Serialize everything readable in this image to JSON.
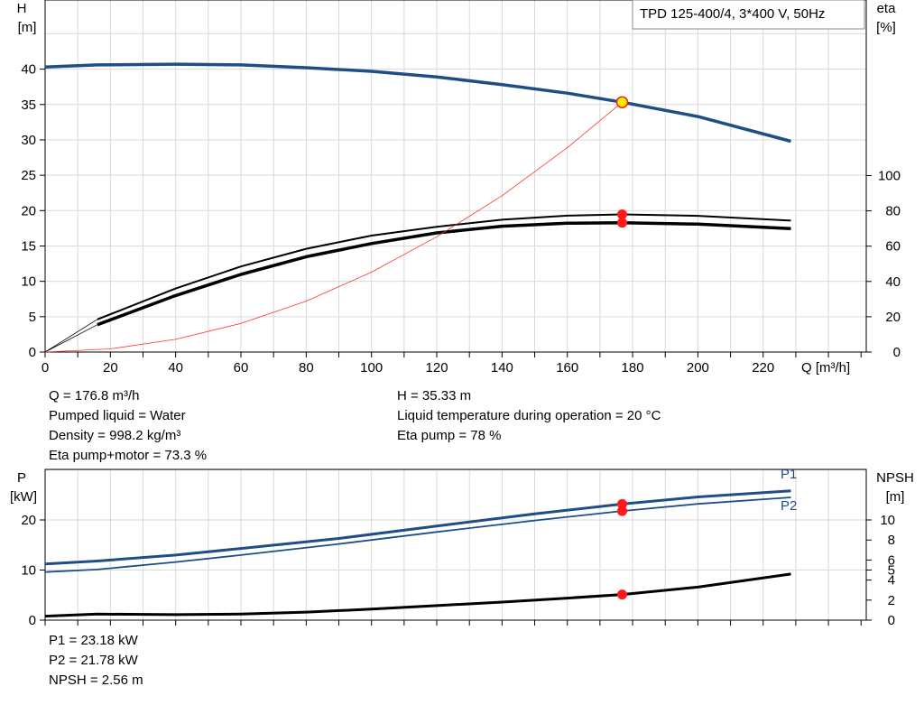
{
  "title_box": "TPD 125-400/4, 3*400 V, 50Hz",
  "top_chart": {
    "left_axis": {
      "label": "H",
      "unit": "[m]"
    },
    "right_axis": {
      "label": "eta",
      "unit": "[%]"
    },
    "x_axis_label": "Q [m³/h]"
  },
  "bottom_chart": {
    "left_axis": {
      "label": "P",
      "unit": "[kW]"
    },
    "right_axis": {
      "label": "NPSH",
      "unit": "[m]"
    }
  },
  "info_top": {
    "left": [
      "Q = 176.8 m³/h",
      "Pumped liquid = Water",
      "Density = 998.2 kg/m³",
      "Eta pump+motor = 73.3 %"
    ],
    "right": [
      "H = 35.33 m",
      "Liquid temperature during operation = 20 °C",
      "Eta pump = 78 %"
    ]
  },
  "info_bottom": [
    "P1 = 23.18 kW",
    "P2 = 21.78 kW",
    "NPSH = 2.56 m"
  ],
  "colors": {
    "head": "#1f4e86",
    "power": "#1f4e86",
    "eta": "#000000",
    "system": "#ff3333",
    "duty": "#ff1a1a",
    "duty_head": "#ffee00",
    "grid": "#d9d9d9"
  },
  "chart_data": [
    {
      "type": "line",
      "title": "TPD 125-400/4, 3*400 V, 50Hz",
      "xlabel": "Q [m³/h]",
      "xlim": [
        0,
        250
      ],
      "x_ticks": [
        0,
        20,
        40,
        60,
        80,
        100,
        120,
        140,
        160,
        180,
        200,
        220
      ],
      "left_y": {
        "label": "H [m]",
        "ylim": [
          0,
          45
        ],
        "ticks": [
          0,
          5,
          10,
          15,
          20,
          25,
          30,
          35,
          40
        ]
      },
      "right_y": {
        "label": "eta [%]",
        "ylim": [
          0,
          180
        ],
        "ticks": [
          0,
          20,
          40,
          60,
          80,
          100
        ]
      },
      "grid": true,
      "series": [
        {
          "axis": "left",
          "style": "head",
          "x": [
            0,
            16,
            40,
            60,
            80,
            100,
            120,
            140,
            160,
            176.8,
            200,
            228.5
          ],
          "y": [
            40.3,
            40.6,
            40.7,
            40.6,
            40.2,
            39.7,
            38.9,
            37.8,
            36.6,
            35.33,
            33.3,
            29.8
          ]
        },
        {
          "axis": "left",
          "style": "head-thin",
          "x": [
            0,
            16
          ],
          "y": [
            40.3,
            40.6
          ]
        },
        {
          "axis": "right",
          "style": "eta-pump",
          "x": [
            16,
            40,
            60,
            80,
            100,
            120,
            140,
            160,
            176.8,
            200,
            228.5
          ],
          "y": [
            18.5,
            36,
            48.5,
            58.5,
            66,
            71,
            75,
            77.3,
            78,
            77.2,
            74.5
          ]
        },
        {
          "axis": "right",
          "style": "eta-total",
          "x": [
            16,
            40,
            60,
            80,
            100,
            120,
            140,
            160,
            176.8,
            200,
            228.5
          ],
          "y": [
            15.5,
            32,
            44,
            54,
            61.5,
            67.5,
            71.3,
            73,
            73.3,
            72.5,
            70
          ]
        },
        {
          "axis": "right",
          "style": "thin",
          "x": [
            0,
            16
          ],
          "y": [
            0,
            18.5
          ]
        },
        {
          "axis": "right",
          "style": "thin",
          "x": [
            0,
            16
          ],
          "y": [
            0,
            15.5
          ]
        },
        {
          "axis": "left",
          "style": "system",
          "x": [
            0,
            20,
            40,
            60,
            80,
            100,
            120,
            140,
            160,
            176.8
          ],
          "y": [
            0,
            0.45,
            1.8,
            4.05,
            7.2,
            11.3,
            16.3,
            22.1,
            28.9,
            35.33
          ]
        }
      ],
      "duty_points": [
        {
          "axis": "left",
          "x": 176.8,
          "y": 35.33,
          "style": "head"
        },
        {
          "axis": "right",
          "x": 176.8,
          "y": 78,
          "style": "eta"
        },
        {
          "axis": "right",
          "x": 176.8,
          "y": 73.3,
          "style": "eta"
        }
      ]
    },
    {
      "type": "line",
      "xlim": [
        0,
        250
      ],
      "x_ticks": [
        0,
        20,
        40,
        60,
        80,
        100,
        120,
        140,
        160,
        180,
        200,
        220
      ],
      "left_y": {
        "label": "P [kW]",
        "ylim": [
          0,
          30
        ],
        "ticks": [
          0,
          10,
          20
        ]
      },
      "right_y": {
        "label": "NPSH [m]",
        "ylim": [
          0,
          16
        ],
        "ticks": [
          0,
          2,
          4,
          5,
          6,
          8,
          10
        ]
      },
      "grid": true,
      "series": [
        {
          "axis": "left",
          "name": "P1",
          "style": "power-thick",
          "x": [
            0,
            16,
            40,
            60,
            90,
            120,
            150,
            176.8,
            200,
            228.5
          ],
          "y": [
            11.2,
            11.8,
            13,
            14.3,
            16.3,
            18.8,
            21.2,
            23.18,
            24.6,
            25.8
          ]
        },
        {
          "axis": "left",
          "name": "P2",
          "style": "power-thin",
          "x": [
            0,
            16,
            40,
            60,
            90,
            120,
            150,
            176.8,
            200,
            228.5
          ],
          "y": [
            9.6,
            10.1,
            11.6,
            13,
            15.2,
            17.6,
            19.9,
            21.78,
            23.2,
            24.5
          ]
        },
        {
          "axis": "right",
          "style": "npsh",
          "x": [
            0,
            16,
            40,
            60,
            80,
            100,
            120,
            140,
            160,
            176.8,
            200,
            228.5
          ],
          "y": [
            0.4,
            0.6,
            0.55,
            0.6,
            0.8,
            1.1,
            1.45,
            1.8,
            2.2,
            2.56,
            3.3,
            4.6
          ]
        }
      ],
      "duty_points": [
        {
          "axis": "left",
          "x": 176.8,
          "y": 23.18
        },
        {
          "axis": "left",
          "x": 176.8,
          "y": 21.78
        },
        {
          "axis": "right",
          "x": 176.8,
          "y": 2.56
        }
      ]
    }
  ]
}
